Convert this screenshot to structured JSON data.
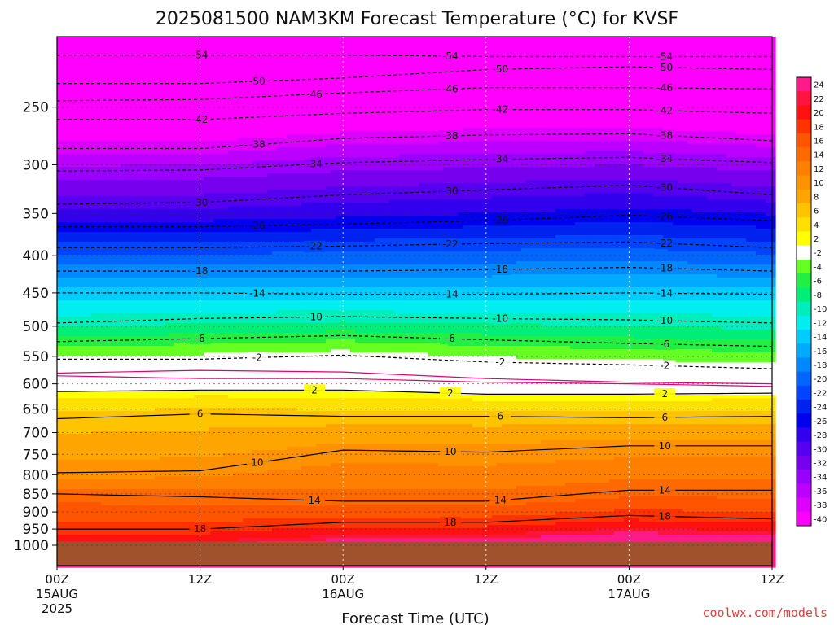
{
  "chart_data": {
    "type": "heatmap",
    "title": "2025081500 NAM3KM Forecast Temperature (°C) for KVSF",
    "xlabel": "Forecast Time (UTC)",
    "ylabel": "",
    "x_ticks": [
      {
        "hour": 0,
        "label": "00Z",
        "sub": [
          "15AUG",
          "2025"
        ]
      },
      {
        "hour": 12,
        "label": "12Z",
        "sub": []
      },
      {
        "hour": 24,
        "label": "00Z",
        "sub": [
          "16AUG"
        ]
      },
      {
        "hour": 36,
        "label": "12Z",
        "sub": []
      },
      {
        "hour": 48,
        "label": "00Z",
        "sub": [
          "17AUG"
        ]
      },
      {
        "hour": 60,
        "label": "12Z",
        "sub": []
      }
    ],
    "xlim": [
      0,
      60
    ],
    "y_ticks": [
      250,
      300,
      350,
      400,
      450,
      500,
      550,
      600,
      650,
      700,
      750,
      800,
      850,
      900,
      950,
      1000
    ],
    "ylim": [
      200,
      1025
    ],
    "y_scale": "log-pressure",
    "ground_level_hpa": 990,
    "grid": true,
    "colorbar": {
      "levels": [
        "24",
        "22",
        "20",
        "18",
        "16",
        "14",
        "12",
        "10",
        "8",
        "6",
        "4",
        "2",
        "-2",
        "-4",
        "-6",
        "-8",
        "-10",
        "-12",
        "-14",
        "-16",
        "-18",
        "-20",
        "-22",
        "-24",
        "-26",
        "-28",
        "-30",
        "-32",
        "-34",
        "-36",
        "-38",
        "-40"
      ],
      "colors": [
        "#ff1a8c",
        "#ff1440",
        "#ff1111",
        "#ff3300",
        "#ff5500",
        "#ff6a00",
        "#ff7f00",
        "#ff9200",
        "#ffa500",
        "#ffc400",
        "#ffe000",
        "#ffff00",
        "#ffffff",
        "#66ff22",
        "#22ee44",
        "#00ee77",
        "#00eebb",
        "#00eeee",
        "#00ccff",
        "#00aaff",
        "#0088ff",
        "#0066ff",
        "#0044ff",
        "#0022ee",
        "#0000ee",
        "#3300ee",
        "#5500ee",
        "#7700ee",
        "#9900ff",
        "#bb00ff",
        "#dd00ff",
        "#ff00ff"
      ]
    },
    "isotherms": [
      {
        "value": -54,
        "levels_hpa": [
          212,
          212,
          212,
          213,
          213,
          213
        ]
      },
      {
        "value": -50,
        "levels_hpa": [
          232,
          232,
          228,
          222,
          220,
          222
        ]
      },
      {
        "value": -46,
        "levels_hpa": [
          245,
          244,
          239,
          235,
          235,
          236
        ]
      },
      {
        "value": -42,
        "levels_hpa": [
          260,
          260,
          255,
          252,
          252,
          255
        ]
      },
      {
        "value": -38,
        "levels_hpa": [
          285,
          285,
          276,
          273,
          272,
          278
        ]
      },
      {
        "value": -34,
        "levels_hpa": [
          306,
          305,
          298,
          295,
          293,
          298
        ]
      },
      {
        "value": -30,
        "levels_hpa": [
          340,
          338,
          330,
          325,
          320,
          330
        ]
      },
      {
        "value": -26,
        "levels_hpa": [
          365,
          365,
          362,
          358,
          352,
          358
        ]
      },
      {
        "value": -22,
        "levels_hpa": [
          390,
          390,
          388,
          385,
          383,
          390
        ]
      },
      {
        "value": -18,
        "levels_hpa": [
          420,
          420,
          420,
          418,
          415,
          420
        ]
      },
      {
        "value": -14,
        "levels_hpa": [
          450,
          450,
          452,
          452,
          450,
          452
        ]
      },
      {
        "value": -10,
        "levels_hpa": [
          495,
          488,
          485,
          488,
          490,
          495
        ]
      },
      {
        "value": -6,
        "levels_hpa": [
          525,
          520,
          515,
          522,
          528,
          533
        ]
      },
      {
        "value": -2,
        "levels_hpa": [
          555,
          555,
          548,
          560,
          565,
          572
        ]
      },
      {
        "value": 2,
        "levels_hpa": [
          615,
          612,
          612,
          620,
          620,
          618
        ]
      },
      {
        "value": 6,
        "levels_hpa": [
          670,
          660,
          665,
          665,
          668,
          665
        ]
      },
      {
        "value": 10,
        "levels_hpa": [
          795,
          790,
          740,
          745,
          730,
          730
        ]
      },
      {
        "value": 14,
        "levels_hpa": [
          850,
          858,
          870,
          870,
          840,
          840
        ]
      },
      {
        "value": 18,
        "levels_hpa": [
          950,
          950,
          930,
          930,
          910,
          920
        ]
      }
    ],
    "freezing_level_lines_hpa": [
      [
        585,
        590,
        590,
        597,
        600,
        605
      ],
      [
        580,
        575,
        578,
        590,
        597,
        600
      ]
    ]
  },
  "watermark": "coolwx.com/models"
}
